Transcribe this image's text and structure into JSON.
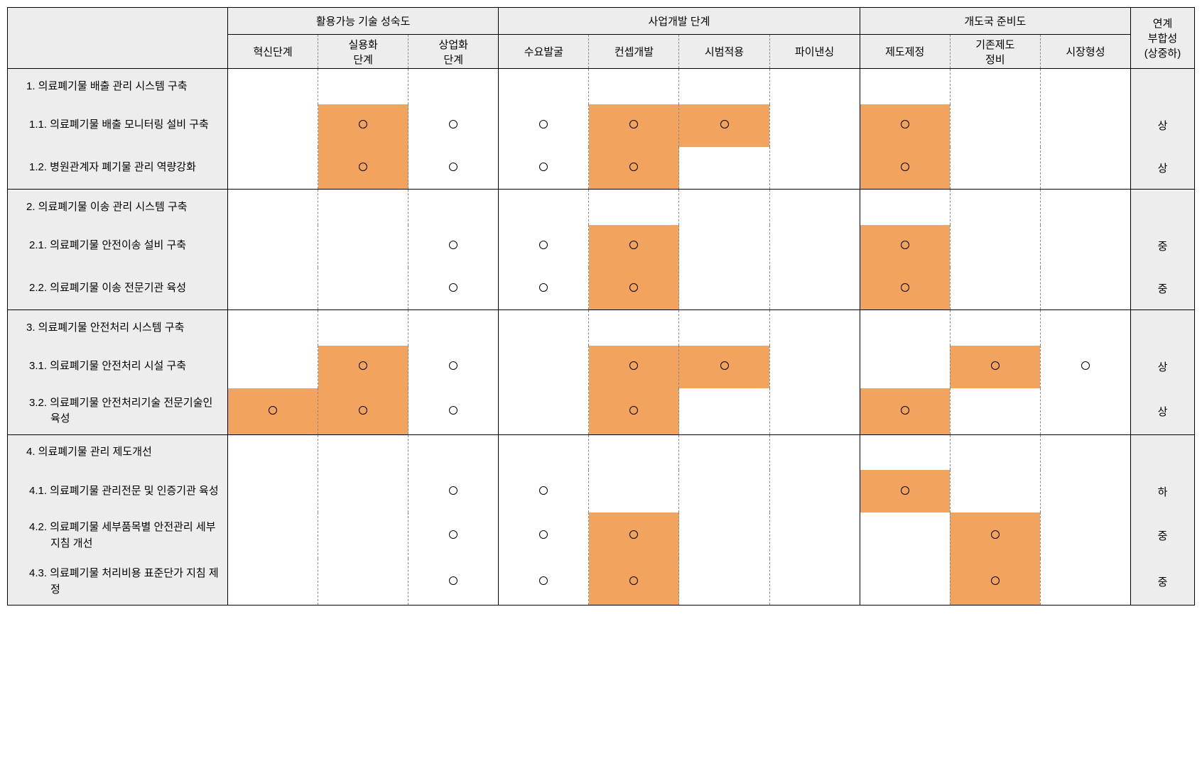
{
  "colors": {
    "header_bg": "#ededed",
    "highlight_bg": "#f2a35e",
    "border_solid": "#000000",
    "border_dashed": "#888888",
    "circle_border": "#000000"
  },
  "typography": {
    "font_family": "Malgun Gothic",
    "font_size_pt": 11
  },
  "header": {
    "group1": "활용가능 기술 성숙도",
    "group2": "사업개발 단계",
    "group3": "개도국 준비도",
    "grade": "연계\n부합성\n(상중하)",
    "sub": {
      "c1": "혁신단계",
      "c2": "실용화\n단계",
      "c3": "상업화\n단계",
      "c4": "수요발굴",
      "c5": "컨셉개발",
      "c6": "시범적용",
      "c7": "파이낸싱",
      "c8": "제도제정",
      "c9": "기존제도\n정비",
      "c10": "시장형성"
    }
  },
  "groups": [
    {
      "main": "1. 의료폐기물 배출 관리 시스템 구축",
      "rows": [
        {
          "label": "1.1. 의료폐기물 배출 모니터링 설비 구축",
          "cells": [
            {
              "mark": false,
              "hl": false
            },
            {
              "mark": true,
              "hl": true
            },
            {
              "mark": true,
              "hl": false
            },
            {
              "mark": true,
              "hl": false
            },
            {
              "mark": true,
              "hl": true
            },
            {
              "mark": true,
              "hl": true
            },
            {
              "mark": false,
              "hl": false
            },
            {
              "mark": true,
              "hl": true
            },
            {
              "mark": false,
              "hl": false
            },
            {
              "mark": false,
              "hl": false
            }
          ],
          "grade": "상"
        },
        {
          "label": "1.2. 병원관계자 폐기물 관리 역량강화",
          "cells": [
            {
              "mark": false,
              "hl": false
            },
            {
              "mark": true,
              "hl": true
            },
            {
              "mark": true,
              "hl": false
            },
            {
              "mark": true,
              "hl": false
            },
            {
              "mark": true,
              "hl": true
            },
            {
              "mark": false,
              "hl": false
            },
            {
              "mark": false,
              "hl": false
            },
            {
              "mark": true,
              "hl": true
            },
            {
              "mark": false,
              "hl": false
            },
            {
              "mark": false,
              "hl": false
            }
          ],
          "grade": "상"
        }
      ]
    },
    {
      "main": "2. 의료폐기물 이송 관리 시스템 구축",
      "rows": [
        {
          "label": "2.1. 의료폐기물 안전이송 설비 구축",
          "cells": [
            {
              "mark": false,
              "hl": false
            },
            {
              "mark": false,
              "hl": false
            },
            {
              "mark": true,
              "hl": false
            },
            {
              "mark": true,
              "hl": false
            },
            {
              "mark": true,
              "hl": true
            },
            {
              "mark": false,
              "hl": false
            },
            {
              "mark": false,
              "hl": false
            },
            {
              "mark": true,
              "hl": true
            },
            {
              "mark": false,
              "hl": false
            },
            {
              "mark": false,
              "hl": false
            }
          ],
          "grade": "중"
        },
        {
          "label": "2.2. 의료폐기물 이송 전문기관 육성",
          "cells": [
            {
              "mark": false,
              "hl": false
            },
            {
              "mark": false,
              "hl": false
            },
            {
              "mark": true,
              "hl": false
            },
            {
              "mark": true,
              "hl": false
            },
            {
              "mark": true,
              "hl": true
            },
            {
              "mark": false,
              "hl": false
            },
            {
              "mark": false,
              "hl": false
            },
            {
              "mark": true,
              "hl": true
            },
            {
              "mark": false,
              "hl": false
            },
            {
              "mark": false,
              "hl": false
            }
          ],
          "grade": "중"
        }
      ]
    },
    {
      "main": "3. 의료폐기물 안전처리 시스템 구축",
      "rows": [
        {
          "label": "3.1. 의료폐기물 안전처리 시설 구축",
          "cells": [
            {
              "mark": false,
              "hl": false
            },
            {
              "mark": true,
              "hl": true
            },
            {
              "mark": true,
              "hl": false
            },
            {
              "mark": false,
              "hl": false
            },
            {
              "mark": true,
              "hl": true
            },
            {
              "mark": true,
              "hl": true
            },
            {
              "mark": false,
              "hl": false
            },
            {
              "mark": false,
              "hl": false
            },
            {
              "mark": true,
              "hl": true
            },
            {
              "mark": true,
              "hl": false
            }
          ],
          "grade": "상"
        },
        {
          "label": "3.2. 의료폐기물 안전처리기술 전문기술인 육성",
          "cells": [
            {
              "mark": true,
              "hl": true
            },
            {
              "mark": true,
              "hl": true
            },
            {
              "mark": true,
              "hl": false
            },
            {
              "mark": false,
              "hl": false
            },
            {
              "mark": true,
              "hl": true
            },
            {
              "mark": false,
              "hl": false
            },
            {
              "mark": false,
              "hl": false
            },
            {
              "mark": true,
              "hl": true
            },
            {
              "mark": false,
              "hl": false
            },
            {
              "mark": false,
              "hl": false
            }
          ],
          "grade": "상"
        }
      ]
    },
    {
      "main": "4. 의료폐기물 관리 제도개선",
      "rows": [
        {
          "label": "4.1. 의료폐기물 관리전문 및 인증기관 육성",
          "cells": [
            {
              "mark": false,
              "hl": false
            },
            {
              "mark": false,
              "hl": false
            },
            {
              "mark": true,
              "hl": false
            },
            {
              "mark": true,
              "hl": false
            },
            {
              "mark": false,
              "hl": false
            },
            {
              "mark": false,
              "hl": false
            },
            {
              "mark": false,
              "hl": false
            },
            {
              "mark": true,
              "hl": true
            },
            {
              "mark": false,
              "hl": false
            },
            {
              "mark": false,
              "hl": false
            }
          ],
          "grade": "하"
        },
        {
          "label": "4.2. 의료폐기물 세부품목별 안전관리 세부 지침 개선",
          "cells": [
            {
              "mark": false,
              "hl": false
            },
            {
              "mark": false,
              "hl": false
            },
            {
              "mark": true,
              "hl": false
            },
            {
              "mark": true,
              "hl": false
            },
            {
              "mark": true,
              "hl": true
            },
            {
              "mark": false,
              "hl": false
            },
            {
              "mark": false,
              "hl": false
            },
            {
              "mark": false,
              "hl": false
            },
            {
              "mark": true,
              "hl": true
            },
            {
              "mark": false,
              "hl": false
            }
          ],
          "grade": "중"
        },
        {
          "label": "4.3. 의료폐기물 처리비용 표준단가 지침 제정",
          "cells": [
            {
              "mark": false,
              "hl": false
            },
            {
              "mark": false,
              "hl": false
            },
            {
              "mark": true,
              "hl": false
            },
            {
              "mark": true,
              "hl": false
            },
            {
              "mark": true,
              "hl": true
            },
            {
              "mark": false,
              "hl": false
            },
            {
              "mark": false,
              "hl": false
            },
            {
              "mark": false,
              "hl": false
            },
            {
              "mark": true,
              "hl": true
            },
            {
              "mark": false,
              "hl": false
            }
          ],
          "grade": "중"
        }
      ]
    }
  ]
}
